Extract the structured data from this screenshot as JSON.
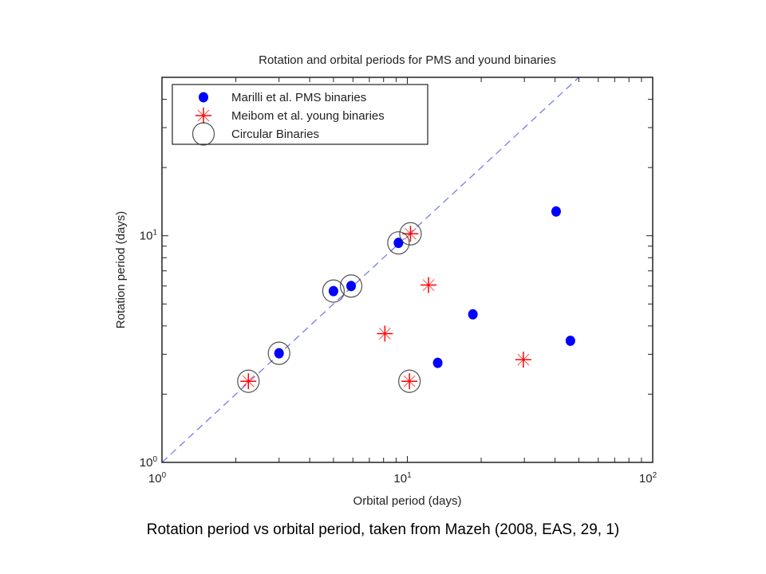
{
  "chart_data": {
    "type": "scatter",
    "title": "Rotation and orbital periods for PMS and yound binaries",
    "xlabel": "Orbital period (days)",
    "ylabel": "Rotation period (days)",
    "xscale": "log",
    "yscale": "log",
    "xlim": [
      1,
      100
    ],
    "ylim": [
      1,
      50
    ],
    "xticks": [
      {
        "base": "10",
        "exp": "0"
      },
      {
        "base": "10",
        "exp": "1"
      },
      {
        "base": "10",
        "exp": "2"
      }
    ],
    "yticks": [
      {
        "base": "10",
        "exp": "0"
      },
      {
        "base": "10",
        "exp": "1"
      }
    ],
    "legend_position": "top-left",
    "reference_line": {
      "type": "y=x",
      "style": "dashed",
      "color": "#7b7bf0"
    },
    "series": [
      {
        "name": "Marilli et al. PMS binaries",
        "marker": "filled-circle",
        "color": "#0000ff",
        "points": [
          [
            3.0,
            3.03
          ],
          [
            5.0,
            5.7
          ],
          [
            5.9,
            6.0
          ],
          [
            9.2,
            9.3
          ],
          [
            13.3,
            2.75
          ],
          [
            18.5,
            4.5
          ],
          [
            40.4,
            12.8
          ],
          [
            46.2,
            3.44
          ]
        ]
      },
      {
        "name": "Meibom et al. young binaries",
        "marker": "asterisk",
        "color": "#ff0000",
        "points": [
          [
            2.25,
            2.28
          ],
          [
            10.3,
            10.2
          ],
          [
            12.2,
            6.06
          ],
          [
            8.1,
            3.7
          ],
          [
            10.2,
            2.28
          ],
          [
            29.7,
            2.84
          ]
        ]
      },
      {
        "name": "Circular Binaries",
        "marker": "open-circle",
        "color": "#333333",
        "points": [
          [
            2.25,
            2.28
          ],
          [
            3.0,
            3.03
          ],
          [
            5.0,
            5.7
          ],
          [
            5.9,
            6.0
          ],
          [
            9.2,
            9.3
          ],
          [
            10.3,
            10.2
          ],
          [
            10.2,
            2.28
          ]
        ]
      }
    ]
  },
  "caption": "Rotation period vs orbital period, taken from Mazeh (2008, EAS, 29, 1)"
}
